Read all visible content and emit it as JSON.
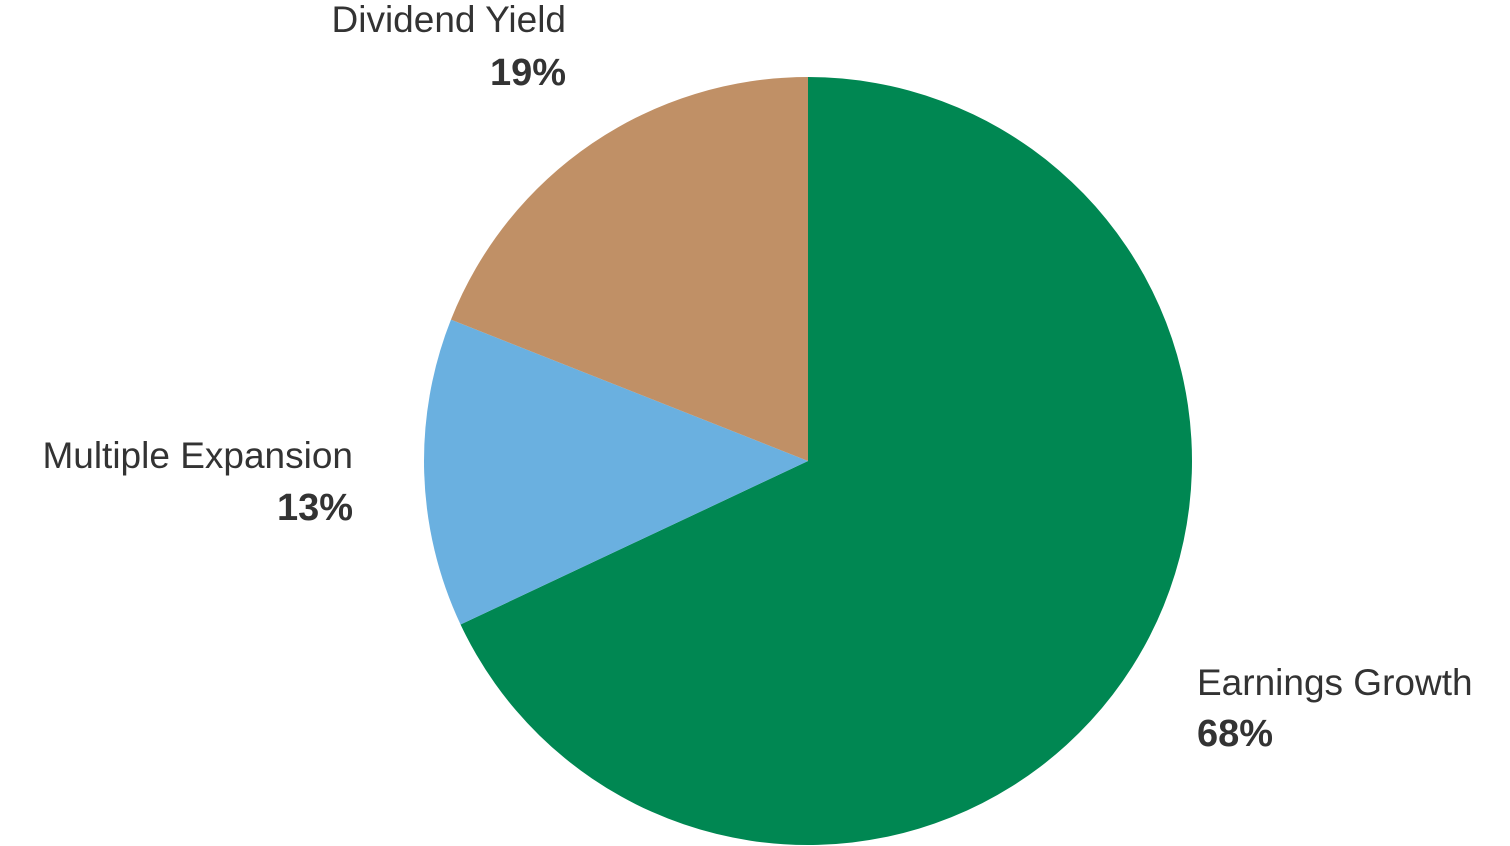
{
  "chart_data": {
    "type": "pie",
    "categories": [
      "Earnings Growth",
      "Multiple Expansion",
      "Dividend Yield"
    ],
    "values": [
      68,
      13,
      19
    ],
    "value_labels": [
      "68%",
      "13%",
      "19%"
    ],
    "colors": [
      "#008752",
      "#6ab0e0",
      "#c09066"
    ]
  }
}
